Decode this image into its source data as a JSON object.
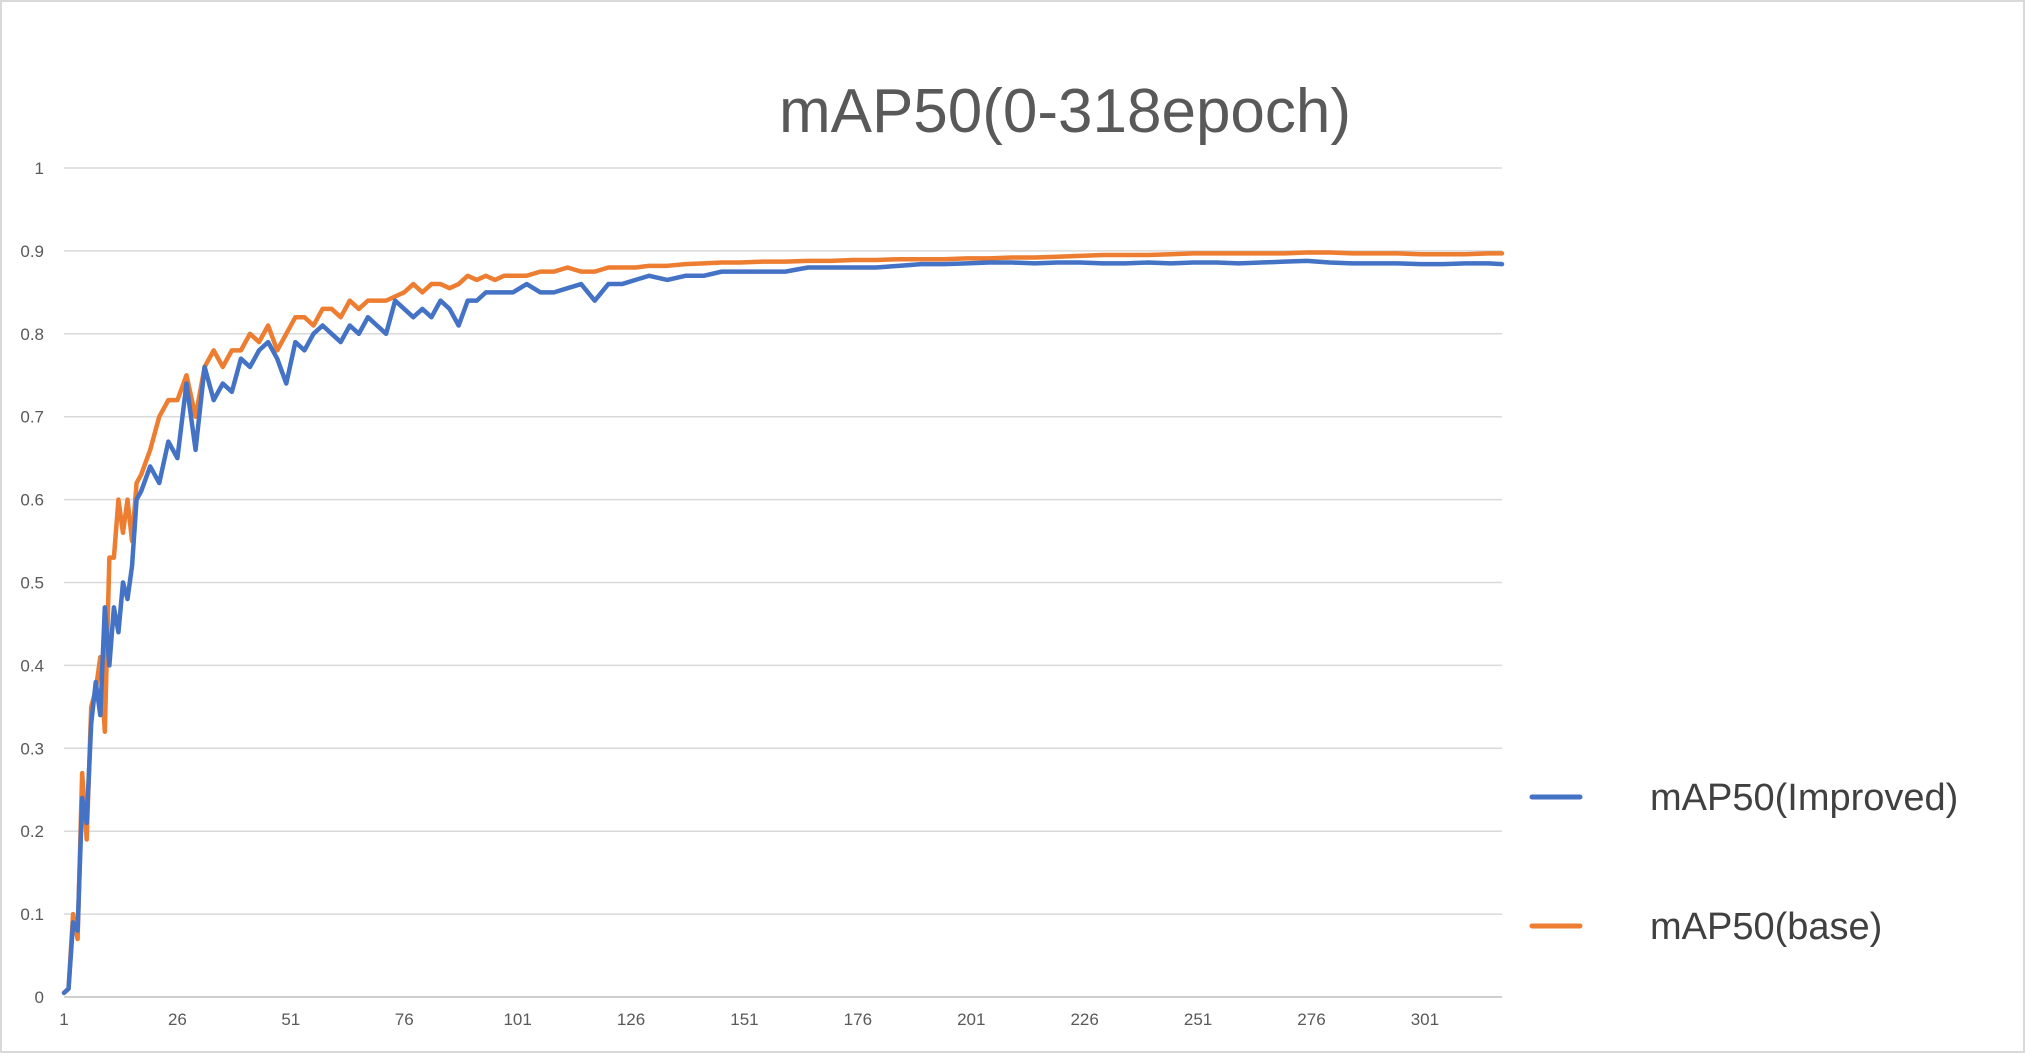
{
  "chart_data": {
    "type": "line",
    "title": "mAP50(0-318epoch)",
    "xlabel": "",
    "ylabel": "",
    "xlim": [
      1,
      318
    ],
    "ylim": [
      0,
      1
    ],
    "y_ticks": [
      "0",
      "0.1",
      "0.2",
      "0.3",
      "0.4",
      "0.5",
      "0.6",
      "0.7",
      "0.8",
      "0.9",
      "1"
    ],
    "x_ticks": [
      "1",
      "26",
      "51",
      "76",
      "101",
      "126",
      "151",
      "176",
      "201",
      "226",
      "251",
      "276",
      "301"
    ],
    "grid": true,
    "legend_position": "right",
    "x": [
      1,
      2,
      3,
      4,
      5,
      6,
      7,
      8,
      9,
      10,
      11,
      12,
      13,
      14,
      15,
      16,
      17,
      18,
      20,
      22,
      24,
      26,
      28,
      30,
      32,
      34,
      36,
      38,
      40,
      42,
      44,
      46,
      48,
      50,
      52,
      54,
      56,
      58,
      60,
      62,
      64,
      66,
      68,
      70,
      72,
      74,
      76,
      78,
      80,
      82,
      84,
      86,
      88,
      90,
      92,
      94,
      96,
      98,
      100,
      103,
      106,
      109,
      112,
      115,
      118,
      121,
      124,
      127,
      130,
      134,
      138,
      142,
      146,
      150,
      155,
      160,
      165,
      170,
      175,
      180,
      185,
      190,
      195,
      200,
      205,
      210,
      215,
      220,
      225,
      230,
      235,
      240,
      245,
      250,
      255,
      260,
      265,
      270,
      275,
      280,
      285,
      290,
      295,
      300,
      305,
      310,
      315,
      318
    ],
    "series": [
      {
        "name": "mAP50(Improved)",
        "color": "#4472c4",
        "values": [
          0.005,
          0.01,
          0.09,
          0.08,
          0.24,
          0.21,
          0.33,
          0.38,
          0.34,
          0.47,
          0.4,
          0.47,
          0.44,
          0.5,
          0.48,
          0.52,
          0.6,
          0.61,
          0.64,
          0.62,
          0.67,
          0.65,
          0.74,
          0.66,
          0.76,
          0.72,
          0.74,
          0.73,
          0.77,
          0.76,
          0.78,
          0.79,
          0.77,
          0.74,
          0.79,
          0.78,
          0.8,
          0.81,
          0.8,
          0.79,
          0.81,
          0.8,
          0.82,
          0.81,
          0.8,
          0.84,
          0.83,
          0.82,
          0.83,
          0.82,
          0.84,
          0.83,
          0.81,
          0.84,
          0.84,
          0.85,
          0.85,
          0.85,
          0.85,
          0.86,
          0.85,
          0.85,
          0.855,
          0.86,
          0.84,
          0.86,
          0.86,
          0.865,
          0.87,
          0.865,
          0.87,
          0.87,
          0.875,
          0.875,
          0.875,
          0.875,
          0.88,
          0.88,
          0.88,
          0.88,
          0.882,
          0.884,
          0.884,
          0.885,
          0.886,
          0.886,
          0.885,
          0.886,
          0.886,
          0.885,
          0.885,
          0.886,
          0.885,
          0.886,
          0.886,
          0.885,
          0.886,
          0.887,
          0.888,
          0.886,
          0.885,
          0.885,
          0.885,
          0.884,
          0.884,
          0.885,
          0.885,
          0.884
        ]
      },
      {
        "name": "mAP50(base)",
        "color": "#ed7d31",
        "values": [
          0.005,
          0.01,
          0.1,
          0.07,
          0.27,
          0.19,
          0.35,
          0.37,
          0.41,
          0.32,
          0.53,
          0.53,
          0.6,
          0.56,
          0.6,
          0.55,
          0.62,
          0.63,
          0.66,
          0.7,
          0.72,
          0.72,
          0.75,
          0.7,
          0.76,
          0.78,
          0.76,
          0.78,
          0.78,
          0.8,
          0.79,
          0.81,
          0.78,
          0.8,
          0.82,
          0.82,
          0.81,
          0.83,
          0.83,
          0.82,
          0.84,
          0.83,
          0.84,
          0.84,
          0.84,
          0.845,
          0.85,
          0.86,
          0.85,
          0.86,
          0.86,
          0.855,
          0.86,
          0.87,
          0.865,
          0.87,
          0.865,
          0.87,
          0.87,
          0.87,
          0.875,
          0.875,
          0.88,
          0.875,
          0.875,
          0.88,
          0.88,
          0.88,
          0.882,
          0.882,
          0.884,
          0.885,
          0.886,
          0.886,
          0.887,
          0.887,
          0.888,
          0.888,
          0.889,
          0.889,
          0.89,
          0.89,
          0.89,
          0.891,
          0.891,
          0.892,
          0.892,
          0.893,
          0.894,
          0.895,
          0.895,
          0.895,
          0.896,
          0.897,
          0.897,
          0.897,
          0.897,
          0.897,
          0.898,
          0.898,
          0.897,
          0.897,
          0.897,
          0.896,
          0.896,
          0.896,
          0.897,
          0.897
        ]
      }
    ]
  }
}
